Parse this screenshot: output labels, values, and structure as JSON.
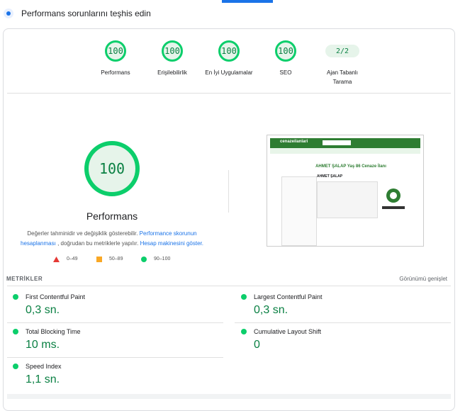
{
  "header": {
    "title": "Performans sorunlarını teşhis edin"
  },
  "scores": [
    {
      "score": 100,
      "label": "Performans"
    },
    {
      "score": 100,
      "label": "Erişilebilirlik"
    },
    {
      "score": 100,
      "label": "En İyi Uygulamalar"
    },
    {
      "score": 100,
      "label": "SEO"
    },
    {
      "score": "2/2",
      "label": "Ajan Tabanlı Tarama"
    }
  ],
  "performance": {
    "score": 100,
    "title": "Performans",
    "description": [
      "Değerler tahminidir ve değişiklik gösterebilir. ",
      "Performance skorunun hesaplanması",
      " , doğrudan bu metriklerle yapılır. ",
      "Hesap makinesini göster."
    ],
    "legend": [
      "0–49",
      "50–89",
      "90–100"
    ]
  },
  "thumbnail": {
    "logo": "cenazeilanlari",
    "heading": "AHMET ŞALAP Yaş 86 Cenaze İlanı",
    "name": "AHMET ŞALAP"
  },
  "metrics": {
    "title": "METRİKLER",
    "expand": "Görünümü genişlet",
    "items": [
      {
        "name": "First Contentful Paint",
        "value": "0,3 sn."
      },
      {
        "name": "Largest Contentful Paint",
        "value": "0,3 sn."
      },
      {
        "name": "Total Blocking Time",
        "value": "10 ms."
      },
      {
        "name": "Cumulative Layout Shift",
        "value": "0"
      },
      {
        "name": "Speed Index",
        "value": "1,1 sn."
      }
    ]
  }
}
